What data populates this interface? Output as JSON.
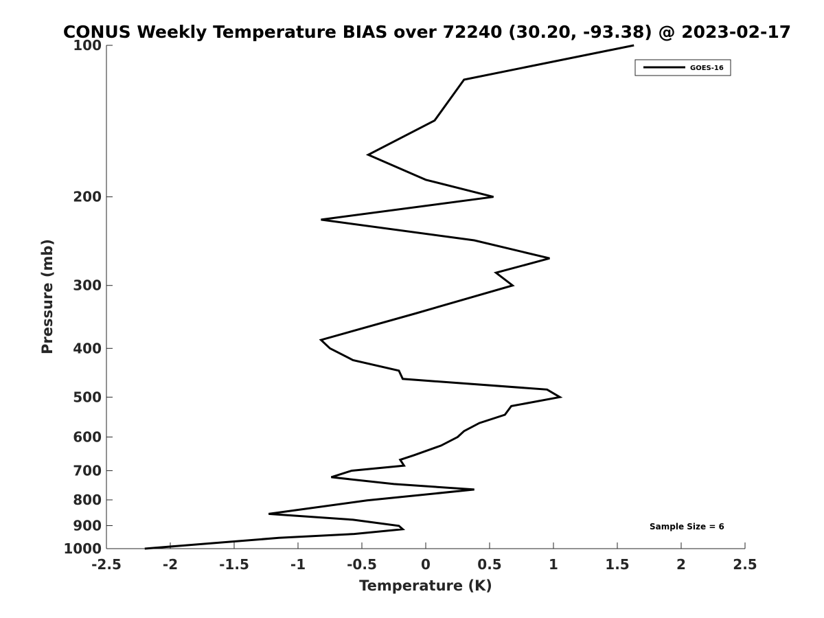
{
  "chart_data": {
    "type": "line",
    "title": "CONUS Weekly Temperature BIAS over 72240 (30.20, -93.38) @ 2023-02-17",
    "xlabel": "Temperature (K)",
    "ylabel": "Pressure (mb)",
    "xlim": [
      -2.5,
      2.5
    ],
    "ylim": [
      100,
      1000
    ],
    "yscale": "log",
    "yreversed": true,
    "grid": false,
    "x_ticks": [
      -2.5,
      -2,
      -1.5,
      -1,
      -0.5,
      0,
      0.5,
      1,
      1.5,
      2,
      2.5
    ],
    "x_tick_labels": [
      "-2.5",
      "-2",
      "-1.5",
      "-1",
      "-0.5",
      "0",
      "0.5",
      "1",
      "1.5",
      "2",
      "2.5"
    ],
    "y_ticks": [
      100,
      200,
      300,
      400,
      500,
      600,
      700,
      800,
      900,
      1000
    ],
    "y_tick_labels": [
      "100",
      "200",
      "300",
      "400",
      "500",
      "600",
      "700",
      "800",
      "900",
      "1000"
    ],
    "legend_position": "top-right",
    "series": [
      {
        "name": "GOES-16",
        "color": "#000000",
        "points": [
          {
            "x": 1.63,
            "p": 100
          },
          {
            "x": 0.3,
            "p": 117
          },
          {
            "x": 0.07,
            "p": 141
          },
          {
            "x": -0.45,
            "p": 165
          },
          {
            "x": 0.0,
            "p": 185
          },
          {
            "x": 0.53,
            "p": 200
          },
          {
            "x": -0.82,
            "p": 222
          },
          {
            "x": 0.38,
            "p": 244
          },
          {
            "x": 0.97,
            "p": 265
          },
          {
            "x": 0.55,
            "p": 283
          },
          {
            "x": 0.68,
            "p": 300
          },
          {
            "x": -0.08,
            "p": 341
          },
          {
            "x": -0.82,
            "p": 385
          },
          {
            "x": -0.75,
            "p": 400
          },
          {
            "x": -0.57,
            "p": 422
          },
          {
            "x": -0.21,
            "p": 443
          },
          {
            "x": -0.18,
            "p": 460
          },
          {
            "x": 0.95,
            "p": 483
          },
          {
            "x": 1.05,
            "p": 500
          },
          {
            "x": 0.67,
            "p": 521
          },
          {
            "x": 0.62,
            "p": 542
          },
          {
            "x": 0.42,
            "p": 563
          },
          {
            "x": 0.3,
            "p": 584
          },
          {
            "x": 0.25,
            "p": 600
          },
          {
            "x": 0.12,
            "p": 624
          },
          {
            "x": -0.09,
            "p": 652
          },
          {
            "x": -0.2,
            "p": 666
          },
          {
            "x": -0.17,
            "p": 684
          },
          {
            "x": -0.58,
            "p": 700
          },
          {
            "x": -0.74,
            "p": 721
          },
          {
            "x": -0.25,
            "p": 744
          },
          {
            "x": 0.38,
            "p": 763
          },
          {
            "x": -0.46,
            "p": 802
          },
          {
            "x": -1.23,
            "p": 853
          },
          {
            "x": -0.57,
            "p": 876
          },
          {
            "x": -0.21,
            "p": 901
          },
          {
            "x": -0.18,
            "p": 915
          },
          {
            "x": -0.56,
            "p": 935
          },
          {
            "x": -1.15,
            "p": 952
          },
          {
            "x": -1.6,
            "p": 972
          },
          {
            "x": -2.2,
            "p": 1000
          }
        ]
      }
    ],
    "annotation": "Sample Size = 6"
  }
}
